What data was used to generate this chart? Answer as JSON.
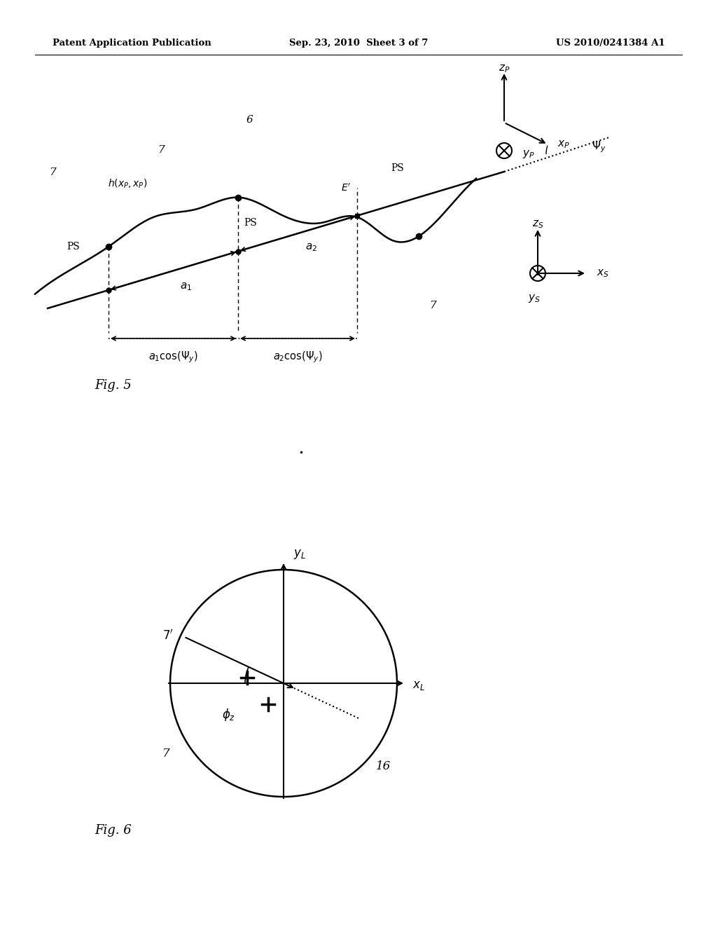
{
  "bg_color": "#ffffff",
  "header_left": "Patent Application Publication",
  "header_center": "Sep. 23, 2010  Sheet 3 of 7",
  "header_right": "US 2010/0241384 A1",
  "fig5_label": "Fig. 5",
  "fig6_label": "Fig. 6"
}
